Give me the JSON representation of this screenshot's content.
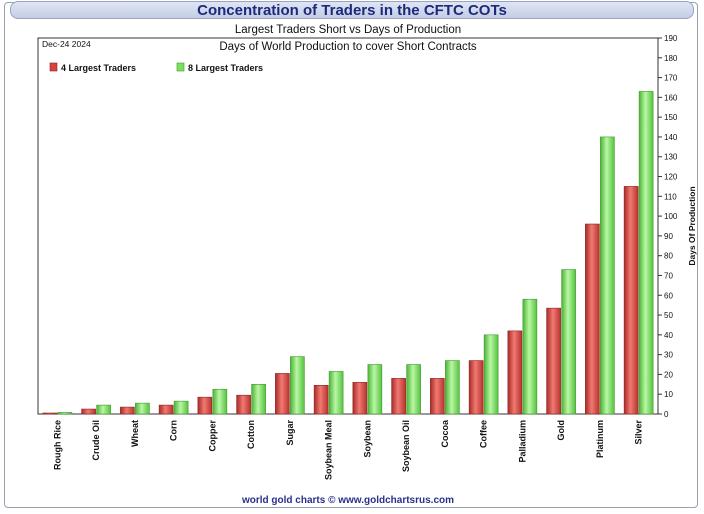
{
  "banner_title": "Concentration of Traders in the CFTC COTs",
  "footer": "world gold charts © www.goldchartsrus.com",
  "chart_data": {
    "type": "bar",
    "title": "Largest Traders Short vs Days of Production",
    "subtitle": "Days of World Production to cover Short Contracts",
    "date_label": "Dec-24  2024",
    "ylabel": "Days Of Production",
    "xlabel": "",
    "ylim": [
      0,
      190
    ],
    "y_ticks": [
      0,
      10,
      20,
      30,
      40,
      50,
      60,
      70,
      80,
      90,
      100,
      110,
      120,
      130,
      140,
      150,
      160,
      170,
      180,
      190
    ],
    "legend_position": "top-left",
    "grid": false,
    "categories": [
      "Rough Rice",
      "Crude Oil",
      "Wheat",
      "Corn",
      "Copper",
      "Cotton",
      "Sugar",
      "Soybean Meal",
      "Soybean",
      "Soybean Oil",
      "Cocoa",
      "Coffee",
      "Palladium",
      "Gold",
      "Platinum",
      "Silver"
    ],
    "series": [
      {
        "name": "4 Largest Traders",
        "color": "#d9423e",
        "values": [
          0.5,
          2.5,
          3.5,
          4.5,
          8.5,
          9.5,
          20.5,
          14.5,
          16,
          18,
          18,
          27,
          42,
          53.5,
          96,
          115
        ]
      },
      {
        "name": "8 Largest Traders",
        "color": "#7be05e",
        "values": [
          0.8,
          4.5,
          5.5,
          6.5,
          12.5,
          15,
          29,
          21.5,
          25,
          25,
          27,
          40,
          58,
          73,
          140,
          163
        ]
      }
    ]
  }
}
